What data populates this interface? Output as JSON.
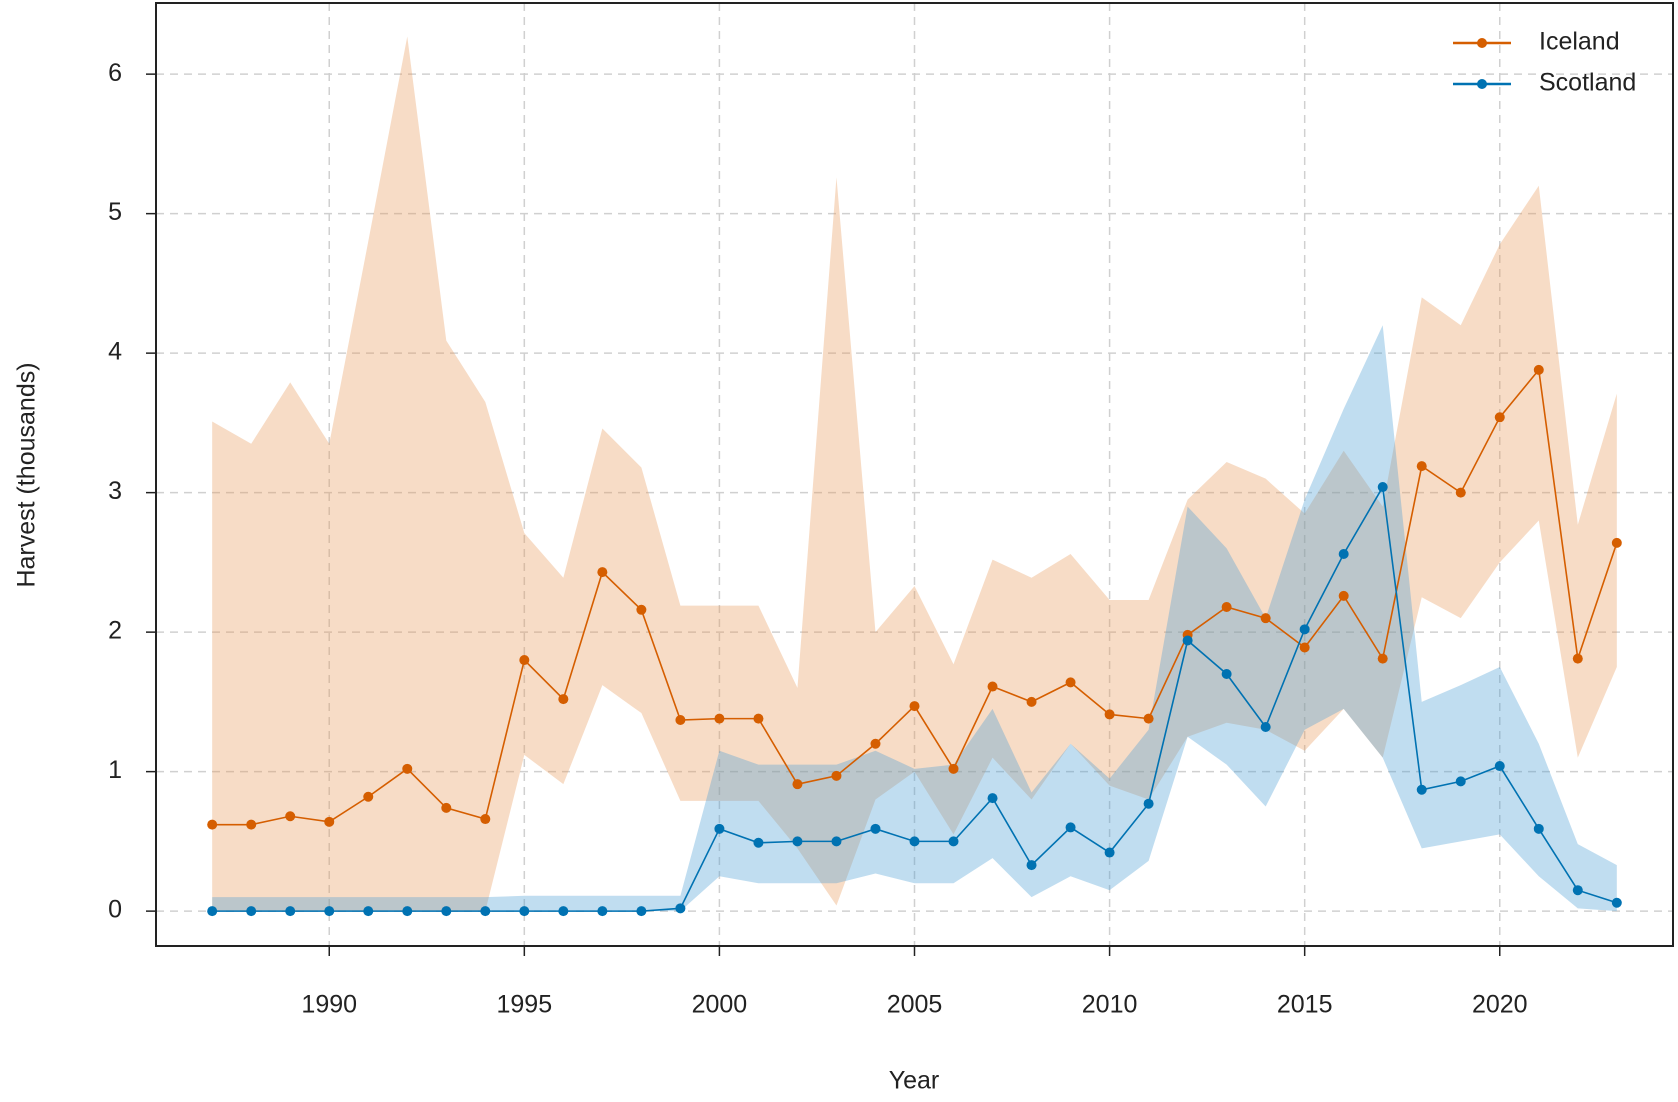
{
  "chart_data": {
    "type": "line",
    "x_label": "Year",
    "y_label": "Harvest (thousands)",
    "x": [
      1987,
      1988,
      1989,
      1990,
      1991,
      1992,
      1993,
      1994,
      1995,
      1996,
      1997,
      1998,
      1999,
      2000,
      2001,
      2002,
      2003,
      2004,
      2005,
      2006,
      2007,
      2008,
      2009,
      2010,
      2011,
      2012,
      2013,
      2014,
      2015,
      2016,
      2017,
      2018,
      2019,
      2020,
      2021,
      2022,
      2023
    ],
    "xlim": [
      1985.56,
      2024.44
    ],
    "xticks": [
      1990,
      1995,
      2000,
      2005,
      2010,
      2015,
      2020
    ],
    "ylim": [
      -0.25,
      6.51
    ],
    "yticks": [
      0,
      1,
      2,
      3,
      4,
      5,
      6
    ],
    "grid": true,
    "legend": "top-right",
    "series": [
      {
        "name": "Iceland",
        "color": "#d55e00",
        "band_color": "#e89a5c",
        "values": [
          0.62,
          0.62,
          0.68,
          0.64,
          0.82,
          1.02,
          0.74,
          0.66,
          1.8,
          1.52,
          2.43,
          2.16,
          1.37,
          1.38,
          1.38,
          0.91,
          0.97,
          1.2,
          1.47,
          1.02,
          1.61,
          1.5,
          1.64,
          1.41,
          1.38,
          1.98,
          2.18,
          2.1,
          1.89,
          2.26,
          1.81,
          3.19,
          3.0,
          3.54,
          3.88,
          1.81,
          2.64
        ],
        "upper": [
          3.51,
          3.35,
          3.79,
          3.35,
          4.8,
          6.27,
          4.09,
          3.65,
          2.71,
          2.39,
          3.46,
          3.18,
          2.19,
          2.19,
          2.19,
          1.6,
          5.26,
          2.0,
          2.33,
          1.77,
          2.52,
          2.39,
          2.56,
          2.23,
          2.23,
          2.95,
          3.22,
          3.1,
          2.85,
          3.3,
          2.9,
          4.4,
          4.2,
          4.78,
          5.2,
          2.77,
          3.71
        ],
        "lower": [
          0,
          0,
          0,
          0,
          0,
          0,
          0,
          0,
          1.12,
          0.91,
          1.62,
          1.42,
          0.79,
          0.79,
          0.79,
          0.45,
          0.04,
          0.8,
          1.0,
          0.55,
          1.1,
          0.8,
          1.2,
          0.9,
          0.8,
          1.25,
          1.35,
          1.3,
          1.15,
          1.45,
          1.1,
          2.25,
          2.1,
          2.5,
          2.8,
          1.1,
          1.75
        ]
      },
      {
        "name": "Scotland",
        "color": "#0072b2",
        "band_color": "#4a9fd4",
        "values": [
          0,
          0,
          0,
          0,
          0,
          0,
          0,
          0,
          0,
          0,
          0,
          0,
          0.02,
          0.59,
          0.49,
          0.5,
          0.5,
          0.59,
          0.5,
          0.5,
          0.81,
          0.33,
          0.6,
          0.42,
          0.77,
          1.94,
          1.7,
          1.32,
          2.02,
          2.56,
          3.04,
          0.87,
          0.93,
          1.04,
          0.59,
          0.15,
          0.06
        ],
        "upper": [
          0.1,
          0.1,
          0.1,
          0.1,
          0.1,
          0.1,
          0.1,
          0.1,
          0.11,
          0.11,
          0.11,
          0.11,
          0.11,
          1.15,
          1.05,
          1.05,
          1.05,
          1.15,
          1.02,
          1.05,
          1.45,
          0.85,
          1.2,
          0.95,
          1.3,
          2.9,
          2.6,
          2.1,
          2.95,
          3.6,
          4.2,
          1.5,
          1.62,
          1.75,
          1.2,
          0.48,
          0.33
        ],
        "lower": [
          0,
          0,
          0,
          0,
          0,
          0,
          0,
          0,
          0,
          0,
          0,
          0,
          0,
          0.25,
          0.2,
          0.2,
          0.2,
          0.27,
          0.2,
          0.2,
          0.38,
          0.1,
          0.25,
          0.15,
          0.36,
          1.25,
          1.05,
          0.75,
          1.3,
          1.45,
          1.1,
          0.45,
          0.5,
          0.55,
          0.25,
          0.02,
          0
        ]
      }
    ]
  }
}
